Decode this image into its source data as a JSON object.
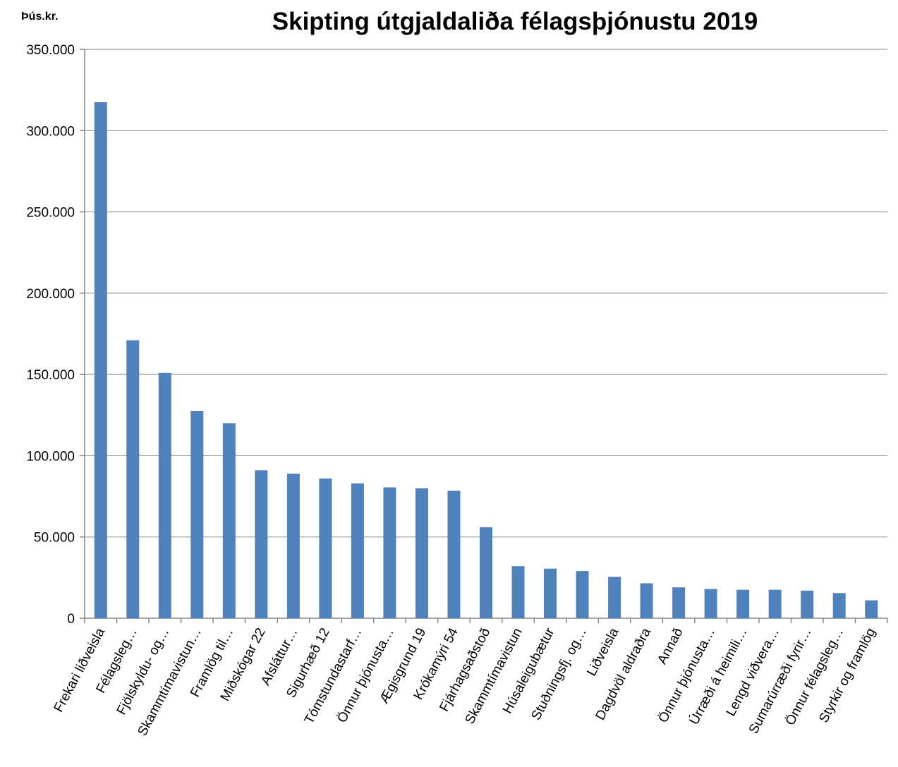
{
  "chart_data": {
    "type": "bar",
    "title": "Skipting útgjaldaliða félagsþjónustu 2019",
    "y_label": "Þús.kr.",
    "categories": [
      "Frekari liðveisla",
      "Félagsleg…",
      "Fjölskyldu- og…",
      "Skammtímavistun…",
      "Framlög til…",
      "Miðskógar 22",
      "Afsláttur…",
      "Sigurhæð 12",
      "Tómstundastarf…",
      "Önnur þjónusta…",
      "Ægisgrund 19",
      "Krókamýri 54",
      "Fjárhagsaðstoð",
      "Skammtímavistun",
      "Húsaleigubætur",
      "Stuðningsfj. og…",
      "Liðveisla",
      "Dagdvöl aldraðra",
      "Annað",
      "Önnur þjónusta…",
      "Úrræði á heimili…",
      "Lengd viðvera…",
      "Sumarúrræði fyrir…",
      "Önnur félagsleg…",
      "Styrkir og framlög"
    ],
    "values": [
      317500,
      171000,
      151000,
      127500,
      120000,
      91000,
      89000,
      86000,
      83000,
      80500,
      80000,
      78500,
      56000,
      32000,
      30500,
      29000,
      25500,
      21500,
      19000,
      18000,
      17500,
      17500,
      17000,
      15500,
      11000
    ],
    "color": "#4f81bd",
    "ylim": [
      0,
      350000
    ],
    "yticks": [
      0,
      {
        "value": 50000,
        "label": "50.000"
      },
      {
        "value": 100000,
        "label": "100.000"
      },
      {
        "value": 150000,
        "label": "150.000"
      },
      {
        "value": 200000,
        "label": "200.000"
      },
      {
        "value": 250000,
        "label": "250.000"
      },
      {
        "value": 300000,
        "label": "300.000"
      },
      {
        "value": 350000,
        "label": "350.000"
      }
    ],
    "grid": true
  }
}
